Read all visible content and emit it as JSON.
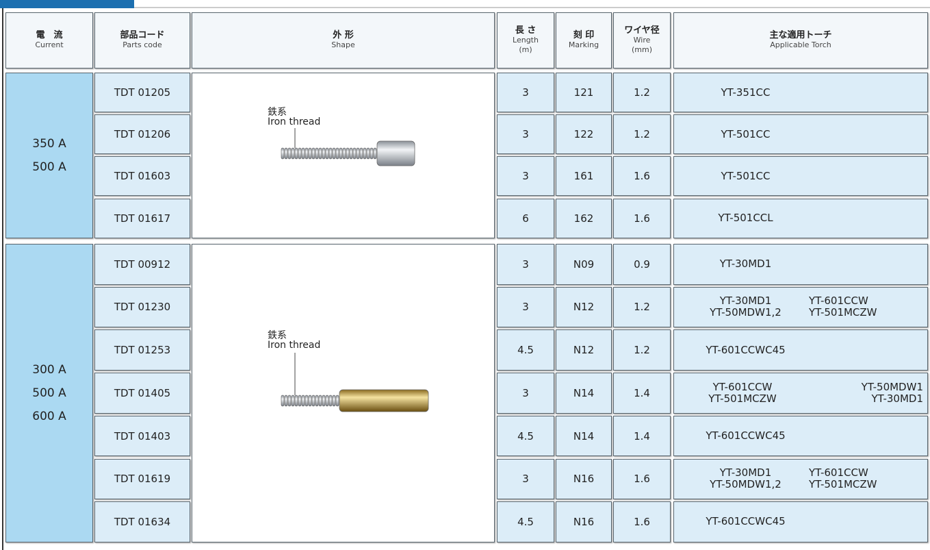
{
  "header": {
    "current": {
      "ja": "電　流",
      "en": "Current"
    },
    "parts": {
      "ja": "部品コード",
      "en": "Parts code"
    },
    "shape": {
      "ja": "外 形",
      "en": "Shape"
    },
    "length": {
      "ja": "長 さ",
      "en": "Length",
      "unit": "(m)"
    },
    "marking": {
      "ja": "刻 印",
      "en": "Marking"
    },
    "wire": {
      "ja": "ワイヤ径",
      "en": "Wire",
      "unit": "(mm)"
    },
    "torch": {
      "ja": "主な適用トーチ",
      "en": "Applicable Torch"
    }
  },
  "groups": [
    {
      "current": [
        "350 A",
        "500 A"
      ],
      "shape_label": {
        "ja": "鉄系",
        "en": "Iron thread"
      },
      "rows": [
        {
          "code": "TDT 01205",
          "length": 3,
          "marking": "121",
          "wire": 1.2,
          "torch": [
            [
              "YT-351CC"
            ]
          ]
        },
        {
          "code": "TDT 01206",
          "length": 3,
          "marking": "122",
          "wire": 1.2,
          "torch": [
            [
              "YT-501CC"
            ]
          ]
        },
        {
          "code": "TDT 01603",
          "length": 3,
          "marking": "161",
          "wire": 1.6,
          "torch": [
            [
              "YT-501CC"
            ]
          ]
        },
        {
          "code": "TDT 01617",
          "length": 6,
          "marking": "162",
          "wire": 1.6,
          "torch": [
            [
              "YT-501CCL"
            ]
          ]
        }
      ]
    },
    {
      "current": [
        "300 A",
        "500 A",
        "600 A"
      ],
      "shape_label": {
        "ja": "鉄系",
        "en": "Iron thread"
      },
      "rows": [
        {
          "code": "TDT 00912",
          "length": 3,
          "marking": "N09",
          "wire": 0.9,
          "torch": [
            [
              "YT-30MD1"
            ]
          ]
        },
        {
          "code": "TDT 01230",
          "length": 3,
          "marking": "N12",
          "wire": 1.2,
          "torch": [
            [
              "YT-30MD1",
              "YT-601CCW"
            ],
            [
              "YT-50MDW1,2",
              "YT-501MCZW"
            ]
          ]
        },
        {
          "code": "TDT 01253",
          "length": 4.5,
          "marking": "N12",
          "wire": 1.2,
          "torch": [
            [
              "YT-601CCWC45"
            ]
          ]
        },
        {
          "code": "TDT 01405",
          "length": 3,
          "marking": "N14",
          "wire": 1.4,
          "torch": [
            [
              "YT-601CCW",
              "YT-50MDW1"
            ],
            [
              "YT-501MCZW",
              "YT-30MD1"
            ]
          ]
        },
        {
          "code": "TDT 01403",
          "length": 4.5,
          "marking": "N14",
          "wire": 1.4,
          "torch": [
            [
              "YT-601CCWC45"
            ]
          ]
        },
        {
          "code": "TDT 01619",
          "length": 3,
          "marking": "N16",
          "wire": 1.6,
          "torch": [
            [
              "YT-30MD1",
              "YT-601CCW"
            ],
            [
              "YT-50MDW1,2",
              "YT-501MCZW"
            ]
          ]
        },
        {
          "code": "TDT 01634",
          "length": 4.5,
          "marking": "N16",
          "wire": 1.6,
          "torch": [
            [
              "YT-601CCWC45"
            ]
          ]
        }
      ]
    }
  ]
}
